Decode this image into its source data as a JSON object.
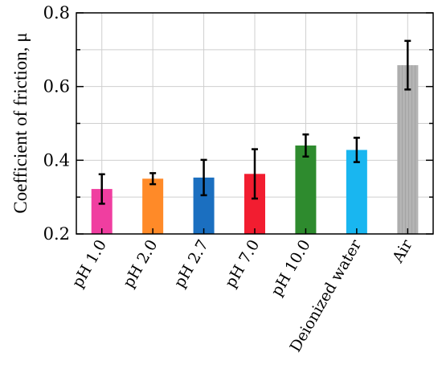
{
  "chart_data": {
    "type": "bar",
    "title": "",
    "xlabel": "",
    "ylabel": "Coefficient of friction, μ",
    "ylim": [
      0.2,
      0.8
    ],
    "yticks": [
      "0.2",
      "0.4",
      "0.6",
      "0.8"
    ],
    "grid": true,
    "categories": [
      "pH 1.0",
      "pH 2.0",
      "pH 2.7",
      "pH 7.0",
      "pH 10.0",
      "Deionized water",
      "Air"
    ],
    "values": [
      0.322,
      0.35,
      0.353,
      0.363,
      0.44,
      0.428,
      0.658
    ],
    "errors": [
      0.04,
      0.015,
      0.048,
      0.067,
      0.03,
      0.033,
      0.066
    ],
    "colors": [
      "#f03ea0",
      "#ff8a28",
      "#1b6fc0",
      "#f21d30",
      "#2e8b2e",
      "#19b6f0",
      "#a8a8a8"
    ]
  }
}
